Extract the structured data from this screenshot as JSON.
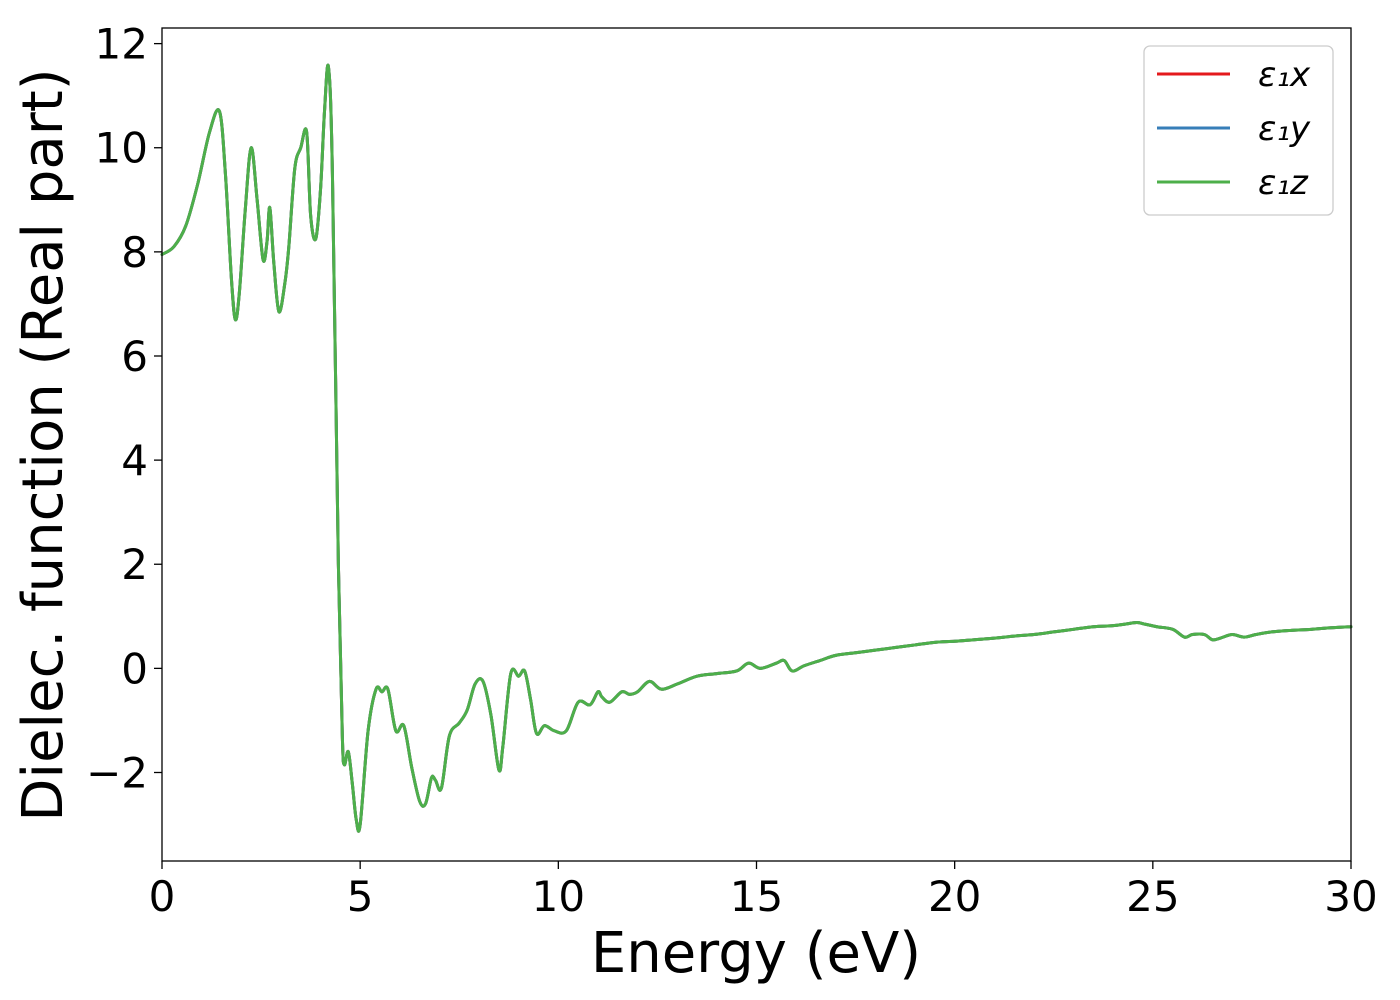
{
  "chart_data": {
    "type": "line",
    "xlabel": "Energy (eV)",
    "ylabel": "Dielec. function (Real part)",
    "xlim": [
      0,
      30
    ],
    "ylim": [
      -3.7,
      12.3
    ],
    "xticks": [
      0,
      5,
      10,
      15,
      20,
      25,
      30
    ],
    "xtick_labels": [
      "0",
      "5",
      "10",
      "15",
      "20",
      "25",
      "30"
    ],
    "yticks": [
      -2,
      0,
      2,
      4,
      6,
      8,
      10,
      12
    ],
    "ytick_labels": [
      "−2",
      "0",
      "2",
      "4",
      "6",
      "8",
      "10",
      "12"
    ],
    "grid": false,
    "legend": "top-right",
    "series": [
      {
        "name": "ε₁x",
        "color": "#e41a1c"
      },
      {
        "name": "ε₁y",
        "color": "#377eb8"
      },
      {
        "name": "ε₁z",
        "color": "#4daf4a"
      }
    ],
    "x": [
      0,
      0.3,
      0.6,
      0.9,
      1.2,
      1.45,
      1.6,
      1.75,
      1.85,
      1.95,
      2.1,
      2.25,
      2.4,
      2.55,
      2.65,
      2.72,
      2.82,
      2.95,
      3.1,
      3.2,
      3.35,
      3.5,
      3.65,
      3.75,
      3.88,
      4.0,
      4.1,
      4.2,
      4.3,
      4.45,
      4.55,
      4.6,
      4.7,
      4.8,
      4.9,
      5.0,
      5.2,
      5.4,
      5.55,
      5.7,
      5.9,
      6.1,
      6.3,
      6.5,
      6.65,
      6.8,
      6.9,
      7.05,
      7.25,
      7.5,
      7.7,
      7.9,
      8.1,
      8.3,
      8.5,
      8.6,
      8.8,
      9.0,
      9.15,
      9.3,
      9.45,
      9.65,
      9.9,
      10.2,
      10.5,
      10.8,
      11.0,
      11.1,
      11.3,
      11.6,
      11.8,
      12.0,
      12.3,
      12.6,
      13.0,
      13.5,
      14.0,
      14.5,
      14.8,
      15.1,
      15.5,
      15.7,
      15.9,
      16.2,
      16.6,
      17.0,
      17.5,
      18.0,
      18.5,
      19.0,
      19.5,
      20.0,
      20.5,
      21.0,
      21.5,
      22.0,
      22.5,
      23.0,
      23.5,
      24.0,
      24.3,
      24.6,
      24.8,
      25.1,
      25.5,
      25.8,
      26.0,
      26.3,
      26.5,
      26.7,
      27.0,
      27.3,
      27.6,
      28.0,
      28.5,
      29.0,
      29.5,
      30.0
    ],
    "y": [
      7.95,
      8.1,
      8.5,
      9.3,
      10.3,
      10.7,
      9.5,
      7.5,
      6.7,
      7.2,
      8.8,
      10.0,
      9.0,
      7.85,
      8.2,
      8.85,
      7.8,
      6.85,
      7.4,
      8.1,
      9.6,
      10.0,
      10.3,
      8.7,
      8.25,
      9.2,
      10.7,
      11.55,
      9.5,
      2.0,
      -1.3,
      -1.85,
      -1.6,
      -2.2,
      -2.9,
      -3.0,
      -1.2,
      -0.4,
      -0.45,
      -0.4,
      -1.2,
      -1.1,
      -1.9,
      -2.55,
      -2.6,
      -2.1,
      -2.15,
      -2.3,
      -1.3,
      -1.05,
      -0.8,
      -0.3,
      -0.25,
      -0.9,
      -1.95,
      -1.5,
      -0.1,
      -0.15,
      -0.05,
      -0.6,
      -1.25,
      -1.1,
      -1.2,
      -1.2,
      -0.65,
      -0.7,
      -0.45,
      -0.55,
      -0.65,
      -0.45,
      -0.5,
      -0.45,
      -0.25,
      -0.4,
      -0.3,
      -0.15,
      -0.1,
      -0.05,
      0.1,
      0.0,
      0.1,
      0.15,
      -0.05,
      0.05,
      0.15,
      0.25,
      0.3,
      0.35,
      0.4,
      0.45,
      0.5,
      0.52,
      0.55,
      0.58,
      0.62,
      0.65,
      0.7,
      0.75,
      0.8,
      0.82,
      0.85,
      0.88,
      0.85,
      0.8,
      0.75,
      0.6,
      0.65,
      0.65,
      0.55,
      0.58,
      0.65,
      0.6,
      0.65,
      0.7,
      0.73,
      0.75,
      0.78,
      0.8
    ]
  }
}
